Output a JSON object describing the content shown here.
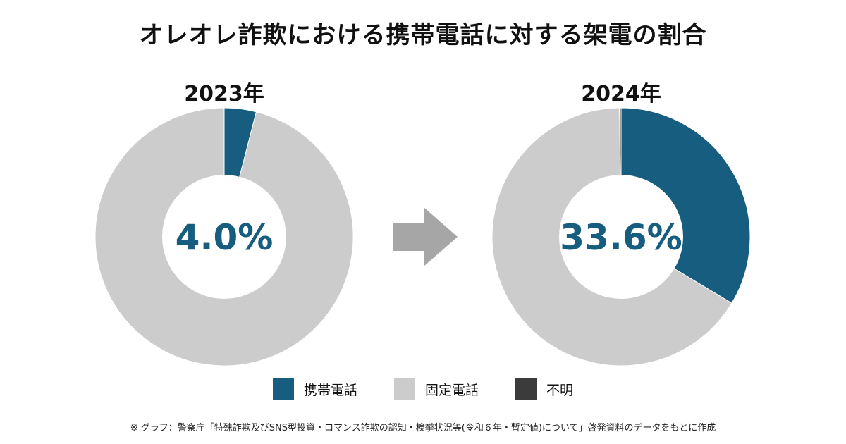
{
  "title": "オレオレ詐欺における携帯電話に対する架電の割合",
  "colors": {
    "mobile": "#175d80",
    "landline": "#cccccc",
    "unknown": "#3b3b3b",
    "hole": "#ffffff",
    "arrow": "#a6a6a6"
  },
  "chart_data": [
    {
      "type": "pie",
      "title": "2023年",
      "center_label": "4.0%",
      "categories": [
        "携帯電話",
        "固定電話",
        "不明"
      ],
      "values": [
        4.0,
        96.0,
        0.0
      ]
    },
    {
      "type": "pie",
      "title": "2024年",
      "center_label": "33.6%",
      "categories": [
        "携帯電話",
        "固定電話",
        "不明"
      ],
      "values": [
        33.6,
        66.2,
        0.2
      ]
    }
  ],
  "legend": [
    {
      "label": "携帯電話",
      "color": "#175d80"
    },
    {
      "label": "固定電話",
      "color": "#cccccc"
    },
    {
      "label": "不明",
      "color": "#3b3b3b"
    }
  ],
  "note": "※ グラフ：警察庁「特殊詐欺及びSNS型投資・ロマンス詐欺の認知・検挙状況等(令和６年・暫定値)について」啓発資料のデータをもとに作成"
}
